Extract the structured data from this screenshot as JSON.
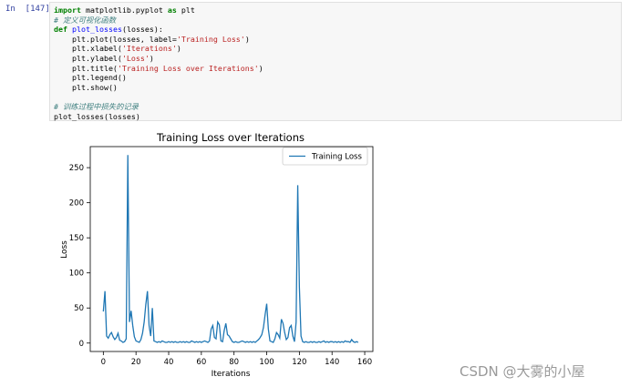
{
  "cell": {
    "prompt": "In  [147]:",
    "code_lines": [
      [
        [
          "kw",
          "import"
        ],
        [
          "nm",
          " matplotlib.pyplot "
        ],
        [
          "kw",
          "as"
        ],
        [
          "nm",
          " plt"
        ]
      ],
      [
        [
          "cm",
          "# 定义可视化函数"
        ]
      ],
      [
        [
          "kw",
          "def"
        ],
        [
          "nm",
          " "
        ],
        [
          "fn",
          "plot_losses"
        ],
        [
          "pn",
          "(losses):"
        ]
      ],
      [
        [
          "nm",
          "    plt.plot(losses, label="
        ],
        [
          "st",
          "'Training Loss'"
        ],
        [
          "pn",
          ")"
        ]
      ],
      [
        [
          "nm",
          "    plt.xlabel("
        ],
        [
          "st",
          "'Iterations'"
        ],
        [
          "pn",
          ")"
        ]
      ],
      [
        [
          "nm",
          "    plt.ylabel("
        ],
        [
          "st",
          "'Loss'"
        ],
        [
          "pn",
          ")"
        ]
      ],
      [
        [
          "nm",
          "    plt.title("
        ],
        [
          "st",
          "'Training Loss over Iterations'"
        ],
        [
          "pn",
          ")"
        ]
      ],
      [
        [
          "nm",
          "    plt.legend()"
        ]
      ],
      [
        [
          "nm",
          "    plt.show()"
        ]
      ],
      [
        [
          "nm",
          " "
        ]
      ],
      [
        [
          "cm",
          "# 训练过程中损失的记录"
        ]
      ],
      [
        [
          "nm",
          "plot_losses(losses)"
        ]
      ]
    ]
  },
  "chart_data": {
    "type": "line",
    "title": "Training Loss over Iterations",
    "xlabel": "Iterations",
    "ylabel": "Loss",
    "xlim": [
      -8,
      165
    ],
    "ylim": [
      -12,
      280
    ],
    "xticks": [
      0,
      20,
      40,
      60,
      80,
      100,
      120,
      140,
      160
    ],
    "yticks": [
      0,
      50,
      100,
      150,
      200,
      250
    ],
    "grid": false,
    "legend_position": "top-right",
    "series": [
      {
        "name": "Training Loss",
        "color": "#1f77b4",
        "x": [
          0,
          1,
          2,
          3,
          4,
          5,
          6,
          7,
          8,
          9,
          10,
          11,
          12,
          13,
          14,
          15,
          16,
          17,
          18,
          19,
          20,
          21,
          22,
          23,
          24,
          25,
          26,
          27,
          28,
          29,
          30,
          31,
          32,
          33,
          34,
          35,
          36,
          37,
          38,
          39,
          40,
          41,
          42,
          43,
          44,
          45,
          46,
          47,
          48,
          49,
          50,
          51,
          52,
          53,
          54,
          55,
          56,
          57,
          58,
          59,
          60,
          61,
          62,
          63,
          64,
          65,
          66,
          67,
          68,
          69,
          70,
          71,
          72,
          73,
          74,
          75,
          76,
          77,
          78,
          79,
          80,
          81,
          82,
          83,
          84,
          85,
          86,
          87,
          88,
          89,
          90,
          91,
          92,
          93,
          94,
          95,
          96,
          97,
          98,
          99,
          100,
          101,
          102,
          103,
          104,
          105,
          106,
          107,
          108,
          109,
          110,
          111,
          112,
          113,
          114,
          115,
          116,
          117,
          118,
          119,
          120,
          121,
          122,
          123,
          124,
          125,
          126,
          127,
          128,
          129,
          130,
          131,
          132,
          133,
          134,
          135,
          136,
          137,
          138,
          139,
          140,
          141,
          142,
          143,
          144,
          145,
          146,
          147,
          148,
          149,
          150,
          151,
          152,
          153,
          154,
          155,
          156
        ],
        "values": [
          45,
          74,
          10,
          7,
          12,
          15,
          9,
          5,
          8,
          14,
          4,
          3,
          1,
          2,
          6,
          268,
          30,
          46,
          25,
          9,
          3,
          2,
          1,
          5,
          14,
          30,
          55,
          74,
          25,
          10,
          50,
          3,
          2,
          1,
          2,
          1,
          3,
          2,
          1,
          1,
          2,
          1,
          2,
          1,
          2,
          1,
          1,
          2,
          1,
          2,
          1,
          2,
          1,
          1,
          3,
          2,
          1,
          2,
          1,
          2,
          1,
          2,
          3,
          2,
          1,
          3,
          20,
          25,
          8,
          6,
          30,
          26,
          3,
          2,
          18,
          28,
          12,
          10,
          6,
          2,
          1,
          2,
          1,
          1,
          2,
          3,
          2,
          1,
          2,
          1,
          2,
          1,
          2,
          1,
          3,
          5,
          8,
          12,
          22,
          40,
          56,
          20,
          3,
          2,
          1,
          6,
          15,
          12,
          7,
          34,
          28,
          15,
          5,
          8,
          22,
          25,
          10,
          2,
          30,
          225,
          80,
          10,
          2,
          1,
          2,
          1,
          1,
          2,
          1,
          2,
          1,
          1,
          2,
          1,
          2,
          3,
          1,
          2,
          1,
          2,
          2,
          1,
          2,
          1,
          2,
          1,
          2,
          1,
          3,
          2,
          2,
          1,
          5,
          2,
          1,
          2,
          1
        ]
      }
    ]
  },
  "watermark": "CSDN @大雾的小屋"
}
